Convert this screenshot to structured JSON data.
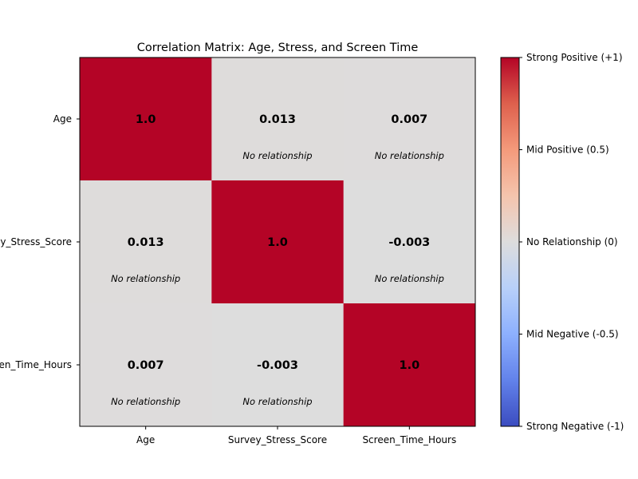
{
  "chart_data": {
    "type": "heatmap",
    "title": "Correlation Matrix: Age, Stress, and Screen Time",
    "xlabel": "",
    "ylabel": "",
    "categories": [
      "Age",
      "Survey_Stress_Score",
      "Screen_Time_Hours"
    ],
    "row_labels": [
      "Age",
      "Survey_Stress_Score",
      "Screen_Time_Hours"
    ],
    "matrix": [
      [
        1.0,
        0.013,
        0.007
      ],
      [
        0.013,
        1.0,
        -0.003
      ],
      [
        0.007,
        -0.003,
        1.0
      ]
    ],
    "value_labels": [
      [
        "1.0",
        "0.013",
        "0.007"
      ],
      [
        "0.013",
        "1.0",
        "-0.003"
      ],
      [
        "0.007",
        "-0.003",
        "1.0"
      ]
    ],
    "annotations": [
      [
        "",
        "No relationship",
        "No relationship"
      ],
      [
        "No relationship",
        "",
        "No relationship"
      ],
      [
        "No relationship",
        "No relationship",
        ""
      ]
    ],
    "colormap": "coolwarm",
    "vmin": -1,
    "vmax": 1,
    "colorbar": {
      "ticks": [
        1,
        0.5,
        0,
        -0.5,
        -1
      ],
      "tick_labels": [
        "Strong Positive (+1)",
        "Mid Positive (0.5)",
        "No Relationship (0)",
        "Mid Negative (-0.5)",
        "Strong Negative (-1)"
      ],
      "placement": "right"
    }
  }
}
